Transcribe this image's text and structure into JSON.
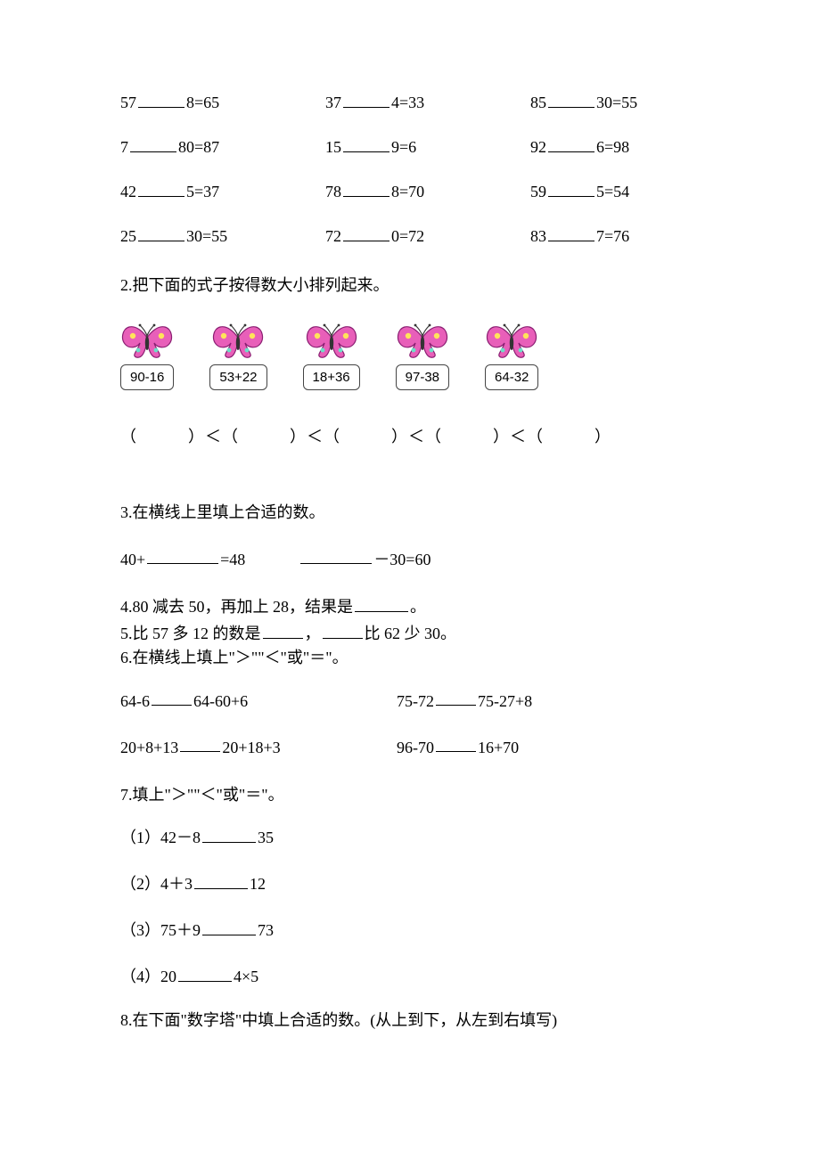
{
  "q1": {
    "rows": [
      [
        {
          "a": "57",
          "b": "8",
          "r": "65"
        },
        {
          "a": "37",
          "b": "4",
          "r": "33"
        },
        {
          "a": "85",
          "b": "30",
          "r": "55"
        }
      ],
      [
        {
          "a": "7",
          "b": "80",
          "r": "87"
        },
        {
          "a": "15",
          "b": "9",
          "r": "6"
        },
        {
          "a": "92",
          "b": "6",
          "r": "98"
        }
      ],
      [
        {
          "a": "42",
          "b": "5",
          "r": "37"
        },
        {
          "a": "78",
          "b": "8",
          "r": "70"
        },
        {
          "a": "59",
          "b": "5",
          "r": "54"
        }
      ],
      [
        {
          "a": "25",
          "b": "30",
          "r": "55"
        },
        {
          "a": "72",
          "b": "0",
          "r": "72"
        },
        {
          "a": "83",
          "b": "7",
          "r": "76"
        }
      ]
    ]
  },
  "q2": {
    "prompt": "2.把下面的式子按得数大小排列起来。",
    "items": [
      "90-16",
      "53+22",
      "18+36",
      "97-38",
      "64-32"
    ],
    "paren_row": "（　　　）＜（　　　）＜（　　　）＜（　　　）＜（　　　）"
  },
  "q3": {
    "prompt": "3.在横线上里填上合适的数。",
    "left_pre": "40+",
    "left_post": "=48",
    "right_post": "－30=60"
  },
  "q4": {
    "pre": "4.80 减去 50，再加上 28，结果是",
    "post": "。"
  },
  "q5": {
    "pre": "5.比 57 多 12 的数是",
    "mid": "，",
    "post": "比 62 少 30。"
  },
  "q6": {
    "prompt": "6.在横线上填上\"＞\"\"＜\"或\"＝\"。",
    "rows": [
      {
        "l": {
          "a": "64-6",
          "b": "64-60+6"
        },
        "r": {
          "a": "75-72",
          "b": "75-27+8"
        }
      },
      {
        "l": {
          "a": "20+8+13",
          "b": "20+18+3"
        },
        "r": {
          "a": "96-70",
          "b": "16+70"
        }
      }
    ]
  },
  "q7": {
    "prompt": "7.填上\"＞\"\"＜\"或\"＝\"。",
    "items": [
      {
        "n": "（1）",
        "a": "42－8",
        "b": "35"
      },
      {
        "n": "（2）",
        "a": "4＋3",
        "b": "12"
      },
      {
        "n": "（3）",
        "a": "75＋9",
        "b": "73"
      },
      {
        "n": "（4）",
        "a": "20",
        "b": "4×5"
      }
    ]
  },
  "q8": {
    "prompt": "8.在下面\"数字塔\"中填上合适的数。(从上到下，从左到右填写)"
  },
  "butterfly": {
    "wing_fill": "#e85fb9",
    "wing_stroke": "#8a1f72",
    "body_fill": "#333333",
    "dot_fill": "#ffe45a",
    "dot2_fill": "#6be0c8",
    "antenna": "#333333"
  }
}
